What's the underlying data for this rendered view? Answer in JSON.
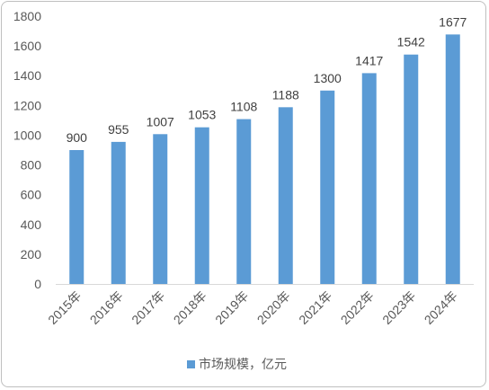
{
  "chart_data": {
    "type": "bar",
    "categories": [
      "2015年",
      "2016年",
      "2017年",
      "2018年",
      "2019年",
      "2020年",
      "2021年",
      "2022年",
      "2023年",
      "2024年"
    ],
    "series": [
      {
        "name": "市场规模，亿元",
        "values": [
          900,
          955,
          1007,
          1053,
          1108,
          1188,
          1300,
          1417,
          1542,
          1677
        ],
        "color": "#5B9BD5"
      }
    ],
    "title": "",
    "xlabel": "",
    "ylabel": "",
    "ylim": [
      0,
      1800
    ],
    "yticks": [
      0,
      200,
      400,
      600,
      800,
      1000,
      1200,
      1400,
      1600,
      1800
    ],
    "grid": false,
    "legend": "bottom"
  }
}
